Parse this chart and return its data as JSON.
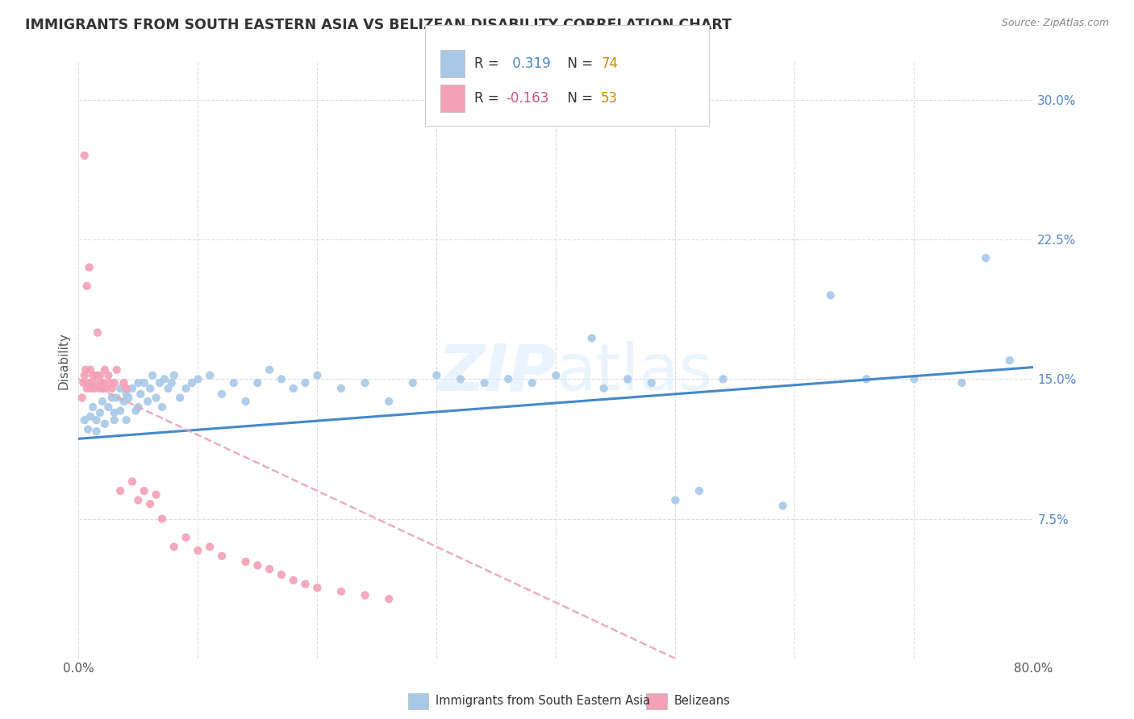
{
  "title": "IMMIGRANTS FROM SOUTH EASTERN ASIA VS BELIZEAN DISABILITY CORRELATION CHART",
  "source": "Source: ZipAtlas.com",
  "ylabel": "Disability",
  "xlim": [
    0.0,
    0.8
  ],
  "ylim": [
    0.0,
    0.32
  ],
  "xticks": [
    0.0,
    0.1,
    0.2,
    0.3,
    0.4,
    0.5,
    0.6,
    0.7,
    0.8
  ],
  "xticklabels": [
    "0.0%",
    "",
    "",
    "",
    "",
    "",
    "",
    "",
    "80.0%"
  ],
  "yticks": [
    0.0,
    0.075,
    0.15,
    0.225,
    0.3
  ],
  "yticklabels": [
    "",
    "7.5%",
    "15.0%",
    "22.5%",
    "30.0%"
  ],
  "color_blue": "#a8c8e8",
  "color_pink": "#f4a0b5",
  "color_line_blue": "#4488cc",
  "color_line_pink": "#e8a0b8",
  "color_ytick": "#5588cc",
  "watermark_color": "#d8e8f0",
  "background_color": "#ffffff",
  "grid_color": "#dddddd",
  "legend_box_color": "#f8f8f8",
  "legend_border_color": "#cccccc",
  "blue_x": [
    0.005,
    0.008,
    0.01,
    0.012,
    0.015,
    0.015,
    0.018,
    0.02,
    0.022,
    0.025,
    0.028,
    0.03,
    0.03,
    0.032,
    0.035,
    0.035,
    0.038,
    0.04,
    0.04,
    0.042,
    0.045,
    0.048,
    0.05,
    0.05,
    0.052,
    0.055,
    0.058,
    0.06,
    0.062,
    0.065,
    0.068,
    0.07,
    0.072,
    0.075,
    0.078,
    0.08,
    0.085,
    0.09,
    0.095,
    0.1,
    0.11,
    0.12,
    0.13,
    0.14,
    0.15,
    0.16,
    0.17,
    0.18,
    0.19,
    0.2,
    0.22,
    0.24,
    0.26,
    0.28,
    0.3,
    0.32,
    0.34,
    0.36,
    0.38,
    0.4,
    0.43,
    0.44,
    0.46,
    0.48,
    0.5,
    0.52,
    0.54,
    0.59,
    0.63,
    0.66,
    0.7,
    0.74,
    0.76,
    0.78
  ],
  "blue_y": [
    0.128,
    0.123,
    0.13,
    0.135,
    0.128,
    0.122,
    0.132,
    0.138,
    0.126,
    0.135,
    0.14,
    0.132,
    0.128,
    0.14,
    0.145,
    0.133,
    0.138,
    0.142,
    0.128,
    0.14,
    0.145,
    0.133,
    0.148,
    0.135,
    0.142,
    0.148,
    0.138,
    0.145,
    0.152,
    0.14,
    0.148,
    0.135,
    0.15,
    0.145,
    0.148,
    0.152,
    0.14,
    0.145,
    0.148,
    0.15,
    0.152,
    0.142,
    0.148,
    0.138,
    0.148,
    0.155,
    0.15,
    0.145,
    0.148,
    0.152,
    0.145,
    0.148,
    0.138,
    0.148,
    0.152,
    0.15,
    0.148,
    0.15,
    0.148,
    0.152,
    0.172,
    0.145,
    0.15,
    0.148,
    0.085,
    0.09,
    0.15,
    0.082,
    0.195,
    0.15,
    0.15,
    0.148,
    0.215,
    0.16
  ],
  "pink_x": [
    0.003,
    0.004,
    0.005,
    0.005,
    0.006,
    0.007,
    0.007,
    0.008,
    0.009,
    0.01,
    0.01,
    0.011,
    0.012,
    0.013,
    0.014,
    0.015,
    0.016,
    0.017,
    0.018,
    0.019,
    0.02,
    0.021,
    0.022,
    0.023,
    0.025,
    0.026,
    0.028,
    0.03,
    0.032,
    0.035,
    0.038,
    0.04,
    0.045,
    0.05,
    0.055,
    0.06,
    0.065,
    0.07,
    0.08,
    0.09,
    0.1,
    0.11,
    0.12,
    0.14,
    0.15,
    0.16,
    0.17,
    0.18,
    0.19,
    0.2,
    0.22,
    0.24,
    0.26
  ],
  "pink_y": [
    0.14,
    0.148,
    0.152,
    0.27,
    0.155,
    0.145,
    0.2,
    0.148,
    0.21,
    0.145,
    0.155,
    0.148,
    0.152,
    0.145,
    0.148,
    0.152,
    0.175,
    0.145,
    0.152,
    0.148,
    0.145,
    0.148,
    0.155,
    0.145,
    0.152,
    0.148,
    0.145,
    0.148,
    0.155,
    0.09,
    0.148,
    0.145,
    0.095,
    0.085,
    0.09,
    0.083,
    0.088,
    0.075,
    0.06,
    0.065,
    0.058,
    0.06,
    0.055,
    0.052,
    0.05,
    0.048,
    0.045,
    0.042,
    0.04,
    0.038,
    0.036,
    0.034,
    0.032
  ]
}
